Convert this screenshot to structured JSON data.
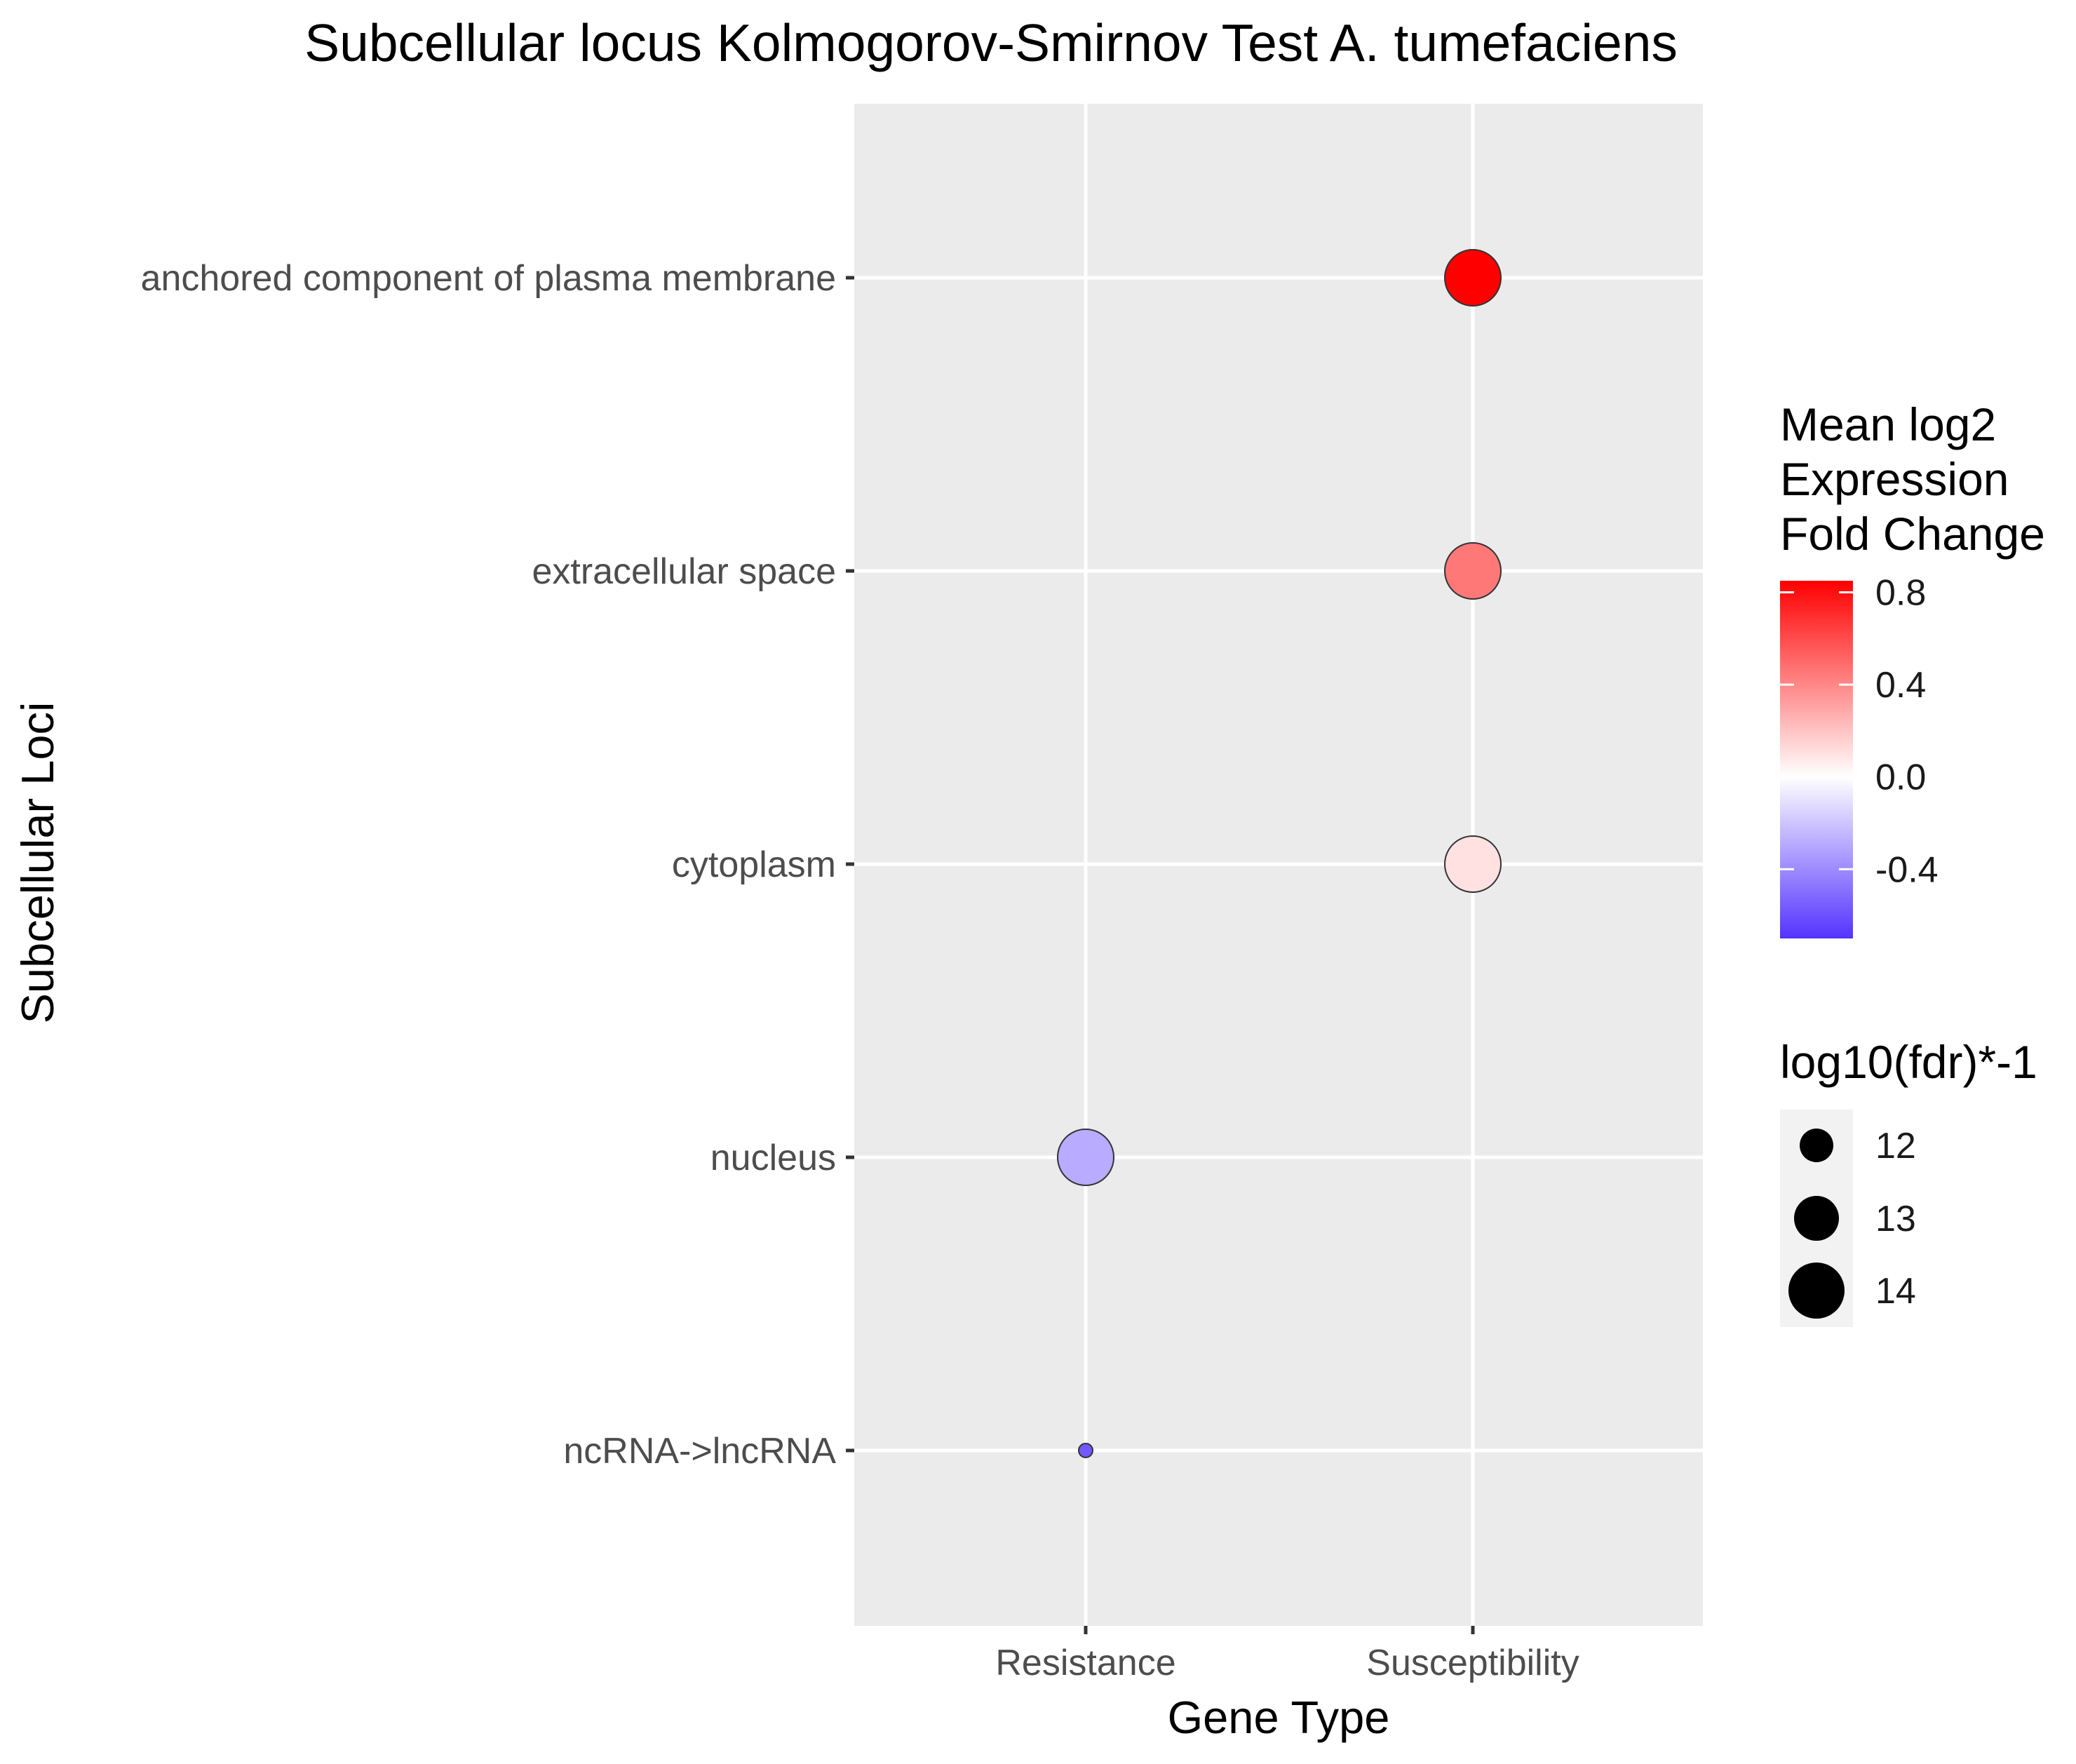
{
  "chart_data": {
    "type": "scatter",
    "title": "Subcellular locus Kolmogorov-Smirnov Test A. tumefaciens",
    "xlabel": "Gene Type",
    "ylabel": "Subcellular Loci",
    "x_categories": [
      "Resistance",
      "Susceptibility"
    ],
    "y_categories": [
      "anchored component of plasma membrane",
      "extracellular space",
      "cytoplasm",
      "nucleus",
      "ncRNA->lncRNA"
    ],
    "points": [
      {
        "x": "Susceptibility",
        "y": "anchored component of plasma membrane",
        "mean_log2_fc": 0.85,
        "neg_log10_fdr": 14.0
      },
      {
        "x": "Susceptibility",
        "y": "extracellular space",
        "mean_log2_fc": 0.45,
        "neg_log10_fdr": 14.0
      },
      {
        "x": "Susceptibility",
        "y": "cytoplasm",
        "mean_log2_fc": 0.1,
        "neg_log10_fdr": 14.0
      },
      {
        "x": "Resistance",
        "y": "nucleus",
        "mean_log2_fc": -0.35,
        "neg_log10_fdr": 14.0
      },
      {
        "x": "Resistance",
        "y": "ncRNA->lncRNA",
        "mean_log2_fc": -0.7,
        "neg_log10_fdr": 11.2
      }
    ],
    "color_legend": {
      "title_lines": [
        "Mean log2",
        "Expression",
        "Fold Change"
      ],
      "breaks": [
        0.8,
        0.4,
        0.0,
        -0.4
      ],
      "break_labels": [
        "0.8",
        "0.4",
        "0.0",
        "-0.4"
      ],
      "range": [
        -0.7,
        0.85
      ],
      "low_color": "#5533ff",
      "mid_color": "#ffffff",
      "high_color": "#ff0000"
    },
    "size_legend": {
      "title": "log10(fdr)*-1",
      "breaks": [
        12,
        13,
        14
      ],
      "break_labels": [
        "12",
        "13",
        "14"
      ]
    },
    "panel_background": "#ebebeb",
    "grid_color": "#ffffff",
    "grid": true,
    "legend_position": "right"
  }
}
